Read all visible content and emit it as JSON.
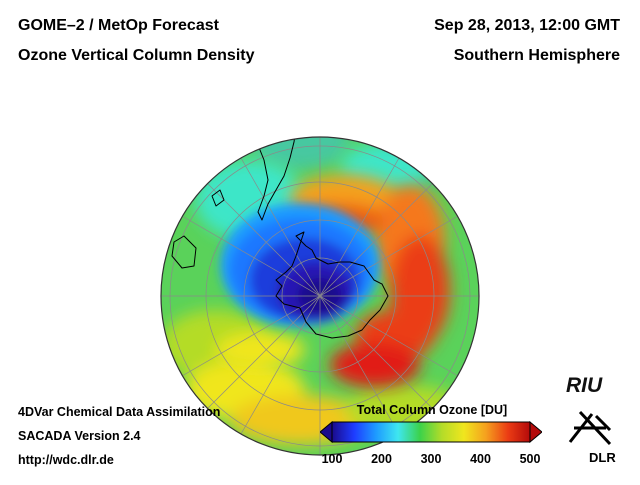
{
  "header": {
    "product": "GOME–2 / MetOp Forecast",
    "quantity": "Ozone Vertical Column Density",
    "datetime": "Sep 28, 2013, 12:00 GMT",
    "region": "Southern Hemisphere"
  },
  "footer": {
    "method": "4DVar Chemical Data Assimilation",
    "version": "SACADA Version 2.4",
    "url": "http://wdc.dlr.de"
  },
  "legend": {
    "title": "Total Column Ozone [DU]",
    "ticks": [
      "100",
      "200",
      "300",
      "400",
      "500"
    ],
    "range": [
      100,
      500
    ],
    "colors": [
      "#1a0a8c",
      "#1e3cff",
      "#1e9bff",
      "#3ee6f0",
      "#3cd24a",
      "#b4dc28",
      "#f0e61e",
      "#f5a01e",
      "#eb3c14",
      "#b40a0a"
    ]
  },
  "logos": {
    "riu": "RIU",
    "dlr": "DLR"
  },
  "map_colors": {
    "hole_core": "#1a0a8c",
    "hole_edge": "#1e9bff",
    "collar": "#e11e14",
    "background": "#5ad25a",
    "subtropics": "#f0e61e",
    "graticule": "#8a8a8a",
    "coast": "#000000"
  }
}
